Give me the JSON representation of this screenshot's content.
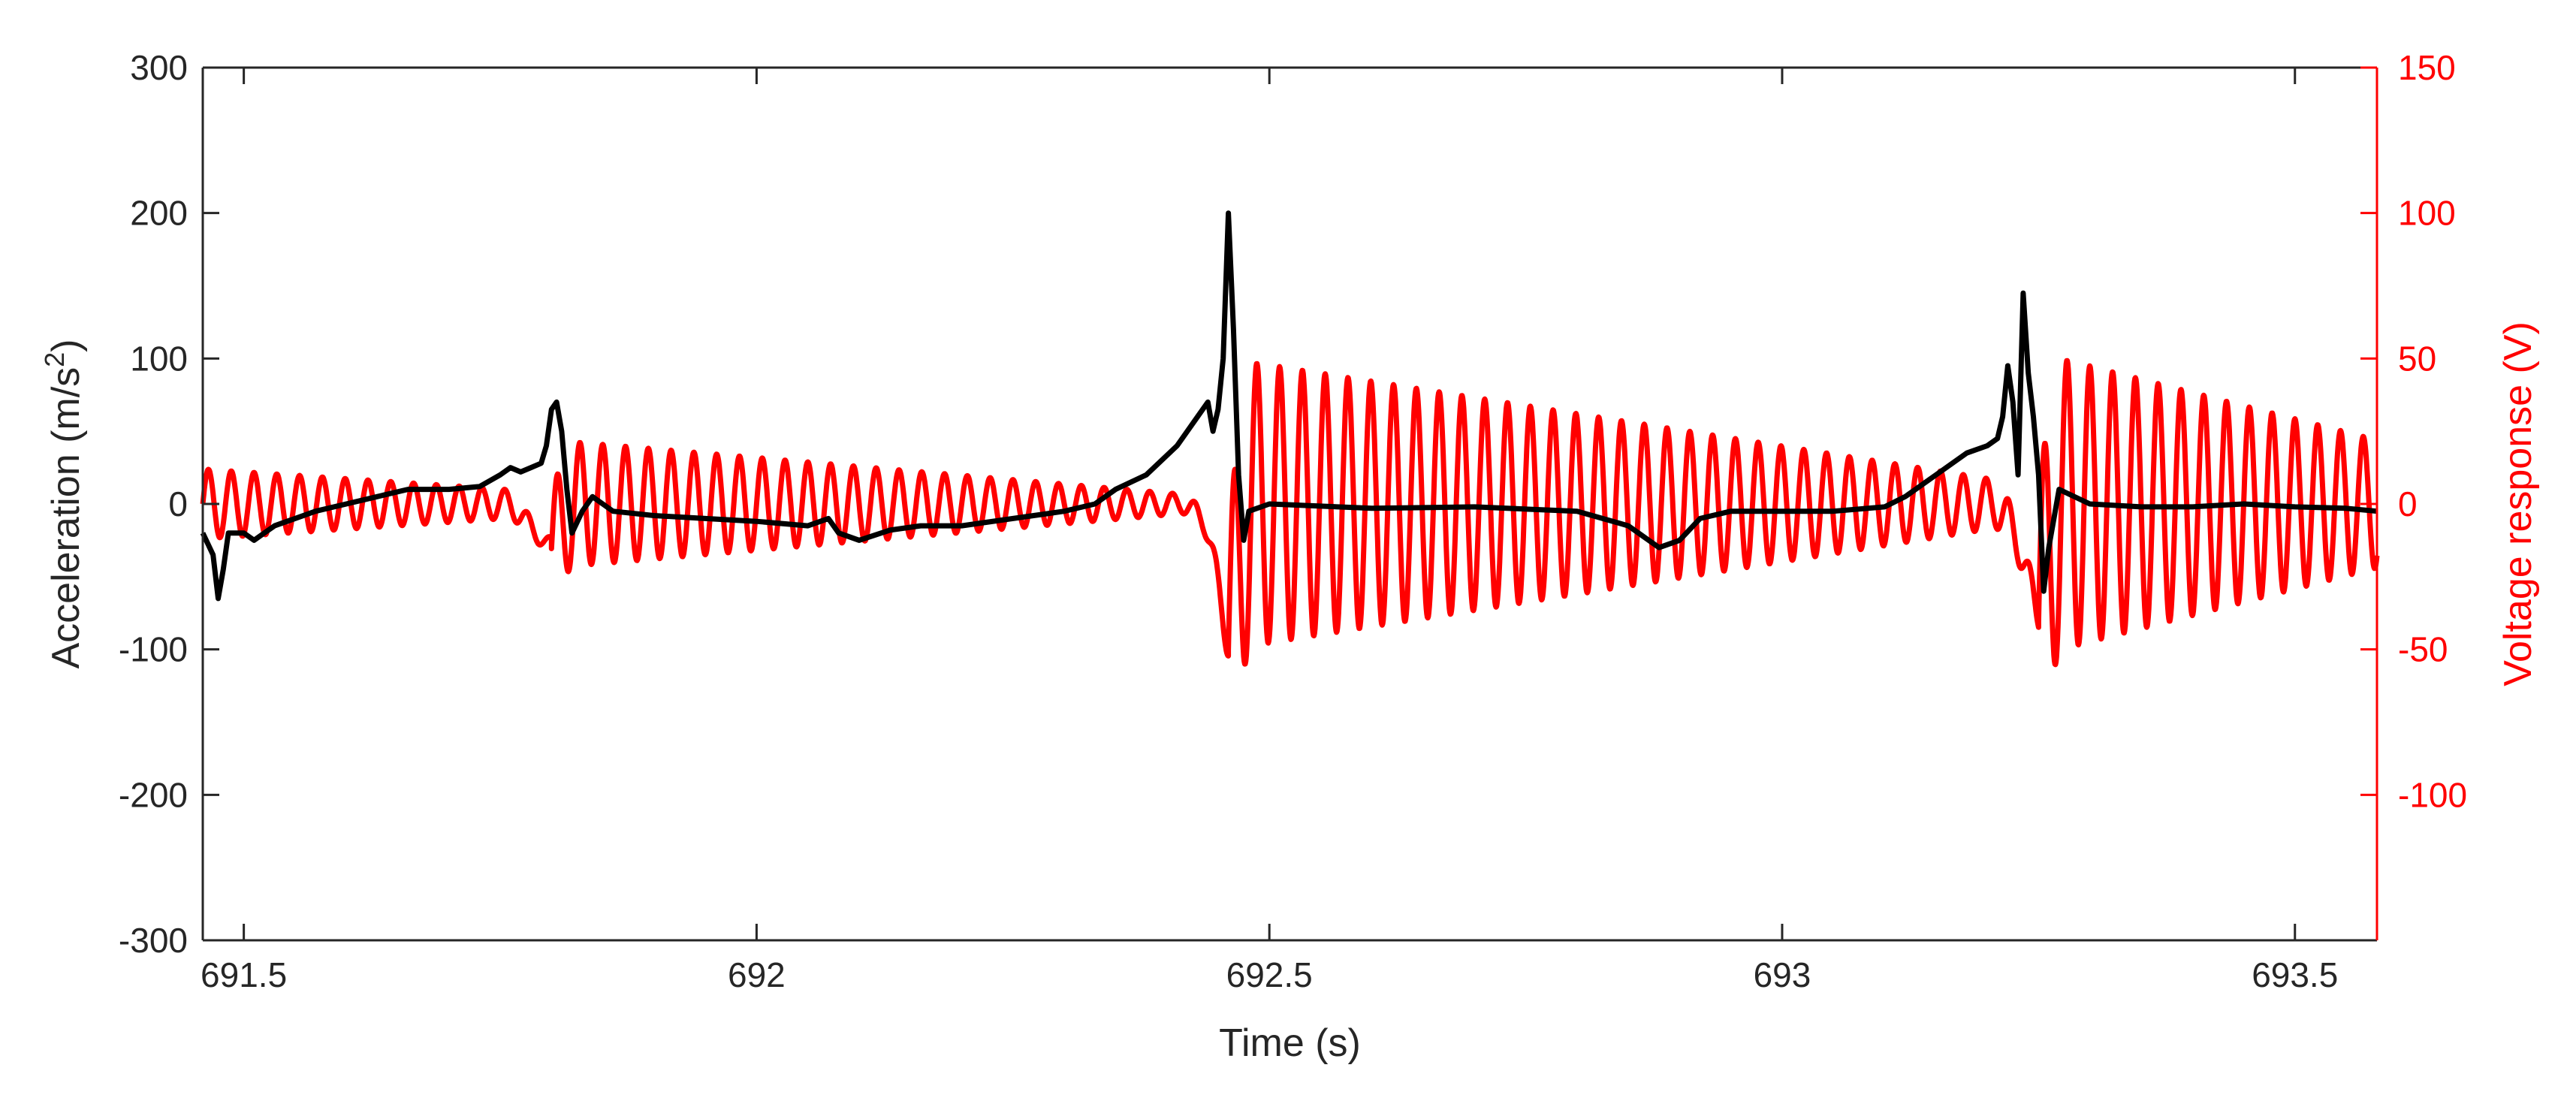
{
  "chart_data": {
    "type": "line",
    "xlabel": "Time (s)",
    "ylabel_left": "Acceleration (m/s²)",
    "ylabel_left_base": "Acceleration (m/s",
    "ylabel_left_sup": "2",
    "ylabel_left_close": ")",
    "ylabel_right": "Voltage response (V)",
    "xlim": [
      691.46,
      693.58
    ],
    "ylim_left": [
      -300,
      300
    ],
    "ylim_right": [
      -150,
      150
    ],
    "xticks": [
      691.5,
      692,
      692.5,
      693,
      693.5
    ],
    "xtick_labels": [
      "691.5",
      "692",
      "692.5",
      "693",
      "693.5"
    ],
    "yticks_left": [
      -300,
      -200,
      -100,
      0,
      100,
      200,
      300
    ],
    "ytick_labels_left": [
      "-300",
      "-200",
      "-100",
      "0",
      "100",
      "200",
      "300"
    ],
    "yticks_right": [
      -100,
      -50,
      0,
      50,
      100,
      150
    ],
    "ytick_labels_right": [
      "-100",
      "-50",
      "0",
      "50",
      "100",
      "150"
    ],
    "colors": {
      "acceleration": "#000000",
      "voltage": "#ff0000",
      "axis": "#262626"
    },
    "series": [
      {
        "axis": "left",
        "color": "#000000",
        "points": [
          [
            691.46,
            -20
          ],
          [
            691.47,
            -35
          ],
          [
            691.475,
            -65
          ],
          [
            691.48,
            -45
          ],
          [
            691.485,
            -20
          ],
          [
            691.5,
            -20
          ],
          [
            691.51,
            -25
          ],
          [
            691.52,
            -20
          ],
          [
            691.53,
            -15
          ],
          [
            691.55,
            -10
          ],
          [
            691.57,
            -5
          ],
          [
            691.6,
            0
          ],
          [
            691.63,
            5
          ],
          [
            691.66,
            10
          ],
          [
            691.7,
            10
          ],
          [
            691.73,
            12
          ],
          [
            691.75,
            20
          ],
          [
            691.76,
            25
          ],
          [
            691.77,
            22
          ],
          [
            691.78,
            25
          ],
          [
            691.79,
            28
          ],
          [
            691.795,
            40
          ],
          [
            691.8,
            65
          ],
          [
            691.805,
            70
          ],
          [
            691.81,
            50
          ],
          [
            691.815,
            10
          ],
          [
            691.82,
            -20
          ],
          [
            691.83,
            -5
          ],
          [
            691.84,
            5
          ],
          [
            691.86,
            -5
          ],
          [
            691.9,
            -8
          ],
          [
            691.95,
            -10
          ],
          [
            692.0,
            -12
          ],
          [
            692.05,
            -15
          ],
          [
            692.07,
            -10
          ],
          [
            692.08,
            -20
          ],
          [
            692.1,
            -25
          ],
          [
            692.13,
            -18
          ],
          [
            692.16,
            -15
          ],
          [
            692.2,
            -15
          ],
          [
            692.25,
            -10
          ],
          [
            692.3,
            -5
          ],
          [
            692.33,
            0
          ],
          [
            692.35,
            10
          ],
          [
            692.38,
            20
          ],
          [
            692.41,
            40
          ],
          [
            692.43,
            60
          ],
          [
            692.44,
            70
          ],
          [
            692.445,
            50
          ],
          [
            692.45,
            65
          ],
          [
            692.455,
            100
          ],
          [
            692.46,
            200
          ],
          [
            692.465,
            120
          ],
          [
            692.47,
            20
          ],
          [
            692.475,
            -25
          ],
          [
            692.48,
            -5
          ],
          [
            692.5,
            0
          ],
          [
            692.6,
            -3
          ],
          [
            692.7,
            -2
          ],
          [
            692.8,
            -5
          ],
          [
            692.85,
            -15
          ],
          [
            692.88,
            -30
          ],
          [
            692.9,
            -25
          ],
          [
            692.92,
            -10
          ],
          [
            692.95,
            -5
          ],
          [
            693.0,
            -5
          ],
          [
            693.05,
            -5
          ],
          [
            693.1,
            -2
          ],
          [
            693.12,
            5
          ],
          [
            693.15,
            20
          ],
          [
            693.18,
            35
          ],
          [
            693.2,
            40
          ],
          [
            693.21,
            45
          ],
          [
            693.215,
            60
          ],
          [
            693.22,
            95
          ],
          [
            693.225,
            70
          ],
          [
            693.23,
            20
          ],
          [
            693.235,
            145
          ],
          [
            693.24,
            90
          ],
          [
            693.245,
            60
          ],
          [
            693.25,
            20
          ],
          [
            693.255,
            -60
          ],
          [
            693.26,
            -30
          ],
          [
            693.27,
            10
          ],
          [
            693.3,
            0
          ],
          [
            693.35,
            -2
          ],
          [
            693.4,
            -2
          ],
          [
            693.45,
            0
          ],
          [
            693.5,
            -2
          ],
          [
            693.55,
            -3
          ],
          [
            693.58,
            -5
          ]
        ]
      },
      {
        "axis": "right",
        "color": "#ff0000",
        "segments": [
          {
            "t0": 691.46,
            "t1": 691.8,
            "freq": 45,
            "amp0": 12,
            "amp1": 4,
            "phase": 0
          },
          {
            "t0": 691.8,
            "t1": 692.46,
            "freq": 45,
            "amp0": 22,
            "amp1": 2,
            "phase": 0
          },
          {
            "t0": 692.46,
            "t1": 693.25,
            "freq": 45,
            "amp0": 50,
            "amp1": 6,
            "phase": 0
          },
          {
            "t0": 693.25,
            "t1": 693.58,
            "freq": 45,
            "amp0": 52,
            "amp1": 22,
            "phase": 0
          }
        ],
        "transients": [
          [
            691.78,
            -8
          ],
          [
            691.8,
            -15
          ],
          [
            692.44,
            -8
          ],
          [
            692.46,
            -50
          ],
          [
            693.23,
            -12
          ],
          [
            693.25,
            -40
          ]
        ]
      }
    ]
  }
}
